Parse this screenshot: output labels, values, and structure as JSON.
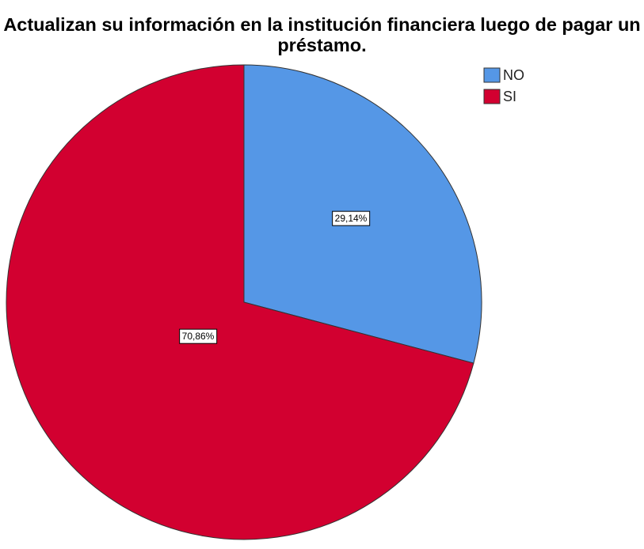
{
  "chart_data": {
    "type": "pie",
    "title": "Actualizan su información en la institución financiera luego de pagar un préstamo.",
    "categories": [
      "NO",
      "SI"
    ],
    "values": [
      29.14,
      70.86
    ],
    "value_labels": [
      "29,14%",
      "70,86%"
    ],
    "colors": [
      "#5597e6",
      "#d20030"
    ],
    "legend": "top-right"
  }
}
